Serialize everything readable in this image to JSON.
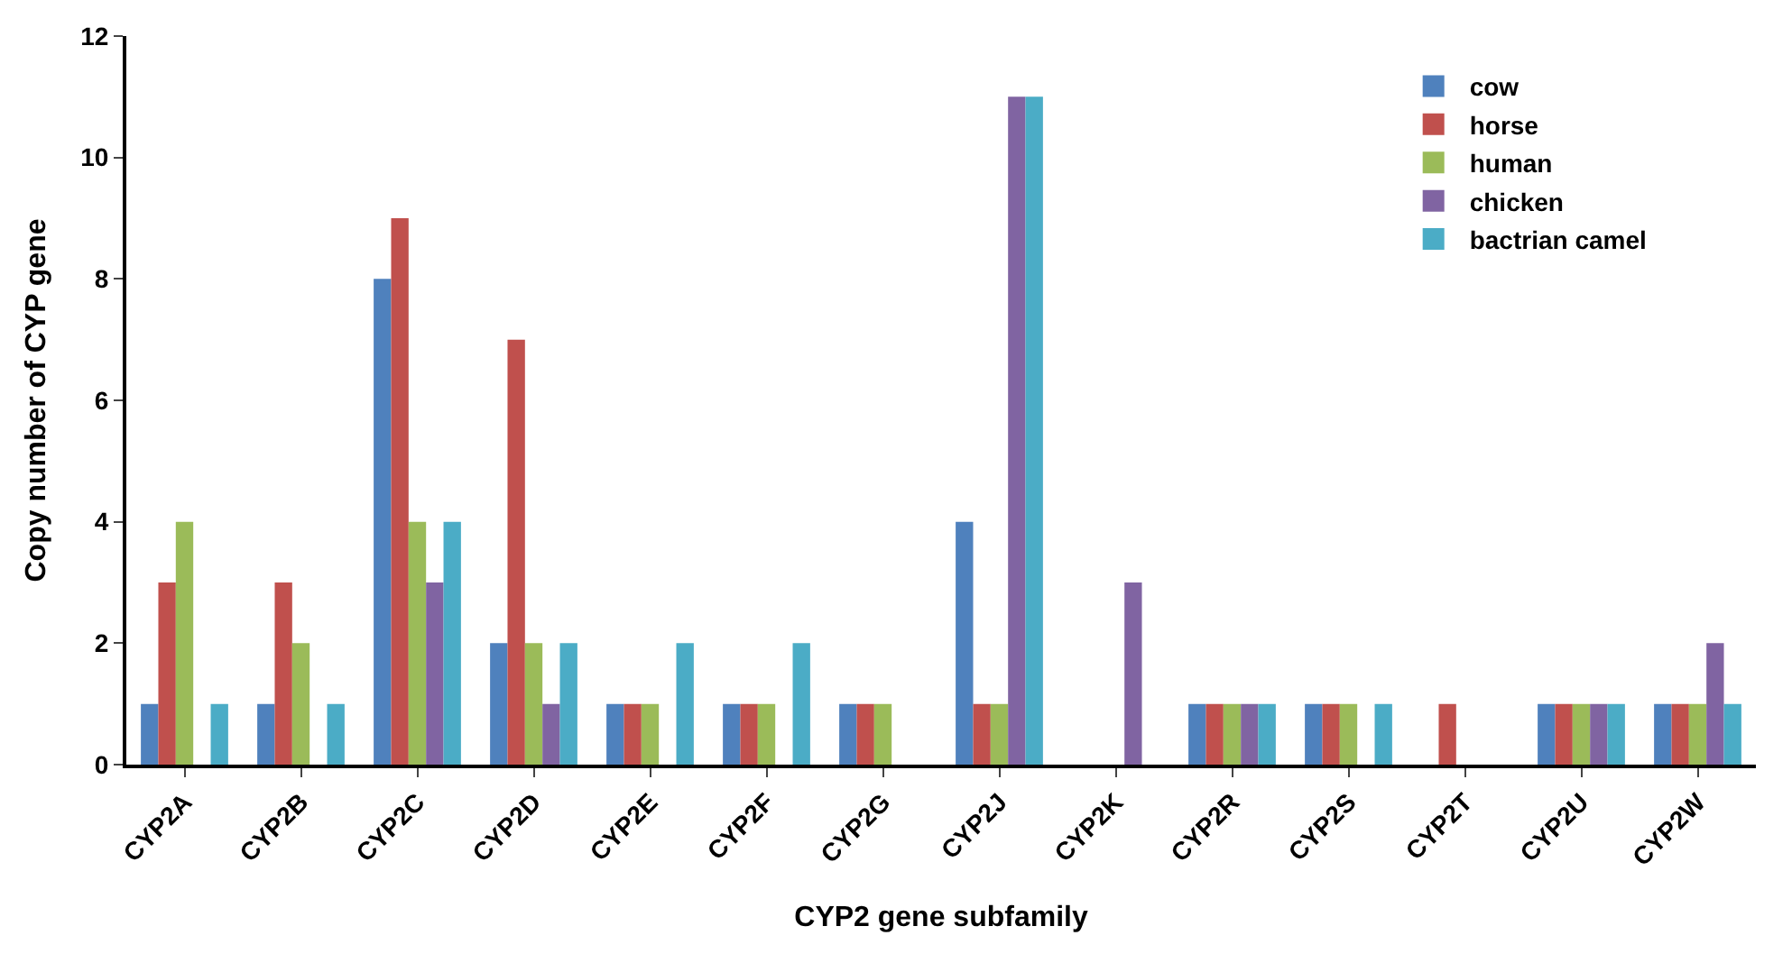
{
  "chart_data": {
    "type": "bar",
    "xlabel": "CYP2 gene subfamily",
    "ylabel": "Copy number of CYP gene",
    "categories": [
      "CYP2A",
      "CYP2B",
      "CYP2C",
      "CYP2D",
      "CYP2E",
      "CYP2F",
      "CYP2G",
      "CYP2J",
      "CYP2K",
      "CYP2R",
      "CYP2S",
      "CYP2T",
      "CYP2U",
      "CYP2W"
    ],
    "series": [
      {
        "name": "cow",
        "color": "#4f81bd",
        "values": [
          1,
          1,
          8,
          2,
          1,
          1,
          1,
          4,
          0,
          1,
          1,
          0,
          1,
          1
        ]
      },
      {
        "name": "horse",
        "color": "#c0504d",
        "values": [
          3,
          3,
          9,
          7,
          1,
          1,
          1,
          1,
          0,
          1,
          1,
          1,
          1,
          1
        ]
      },
      {
        "name": "human",
        "color": "#9bbb59",
        "values": [
          4,
          2,
          4,
          2,
          1,
          1,
          1,
          1,
          0,
          1,
          1,
          0,
          1,
          1
        ]
      },
      {
        "name": "chicken",
        "color": "#8064a2",
        "values": [
          0,
          0,
          3,
          1,
          0,
          0,
          0,
          11,
          3,
          1,
          0,
          0,
          1,
          2
        ]
      },
      {
        "name": "bactrian camel",
        "color": "#4bacc6",
        "values": [
          1,
          1,
          4,
          2,
          2,
          2,
          0,
          11,
          0,
          1,
          1,
          0,
          1,
          1
        ]
      }
    ],
    "ylim": [
      0,
      12
    ],
    "yticks": [
      0,
      2,
      4,
      6,
      8,
      10,
      12
    ],
    "legend": "top right"
  }
}
